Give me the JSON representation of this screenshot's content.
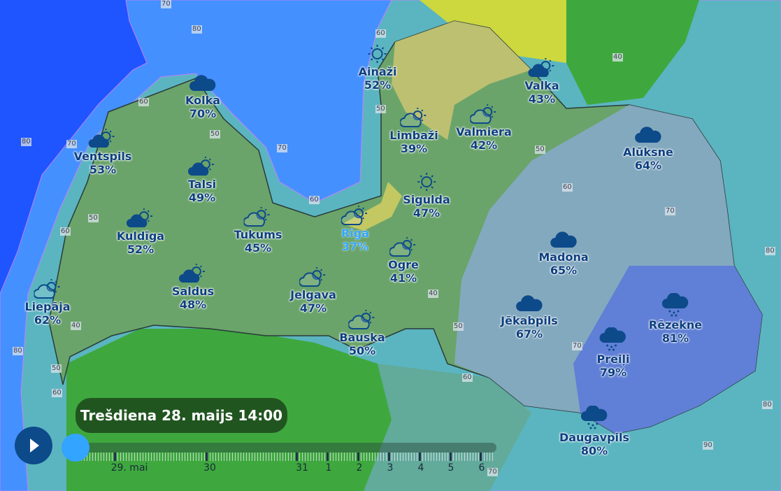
{
  "timeline": {
    "current": "Trešdiena 28. maijs 14:00",
    "progress": 0,
    "labels": [
      "29. mai",
      "30",
      "31",
      "1",
      "2",
      "3",
      "4",
      "5",
      "6"
    ],
    "play_icon": "play-icon"
  },
  "legend_colors": {
    "sea_deep": "#1f55ff",
    "sea": "#4590ff",
    "coast": "#5bb5c0",
    "land": "#6aa46a",
    "east": "#7fa8c8",
    "southeast": "#5c7ad8",
    "lithuania": "#3ea83e",
    "estonia_yellow": "#ccd83e",
    "highlight": "#35a6ff"
  },
  "contours": [
    "70",
    "80",
    "60",
    "60",
    "50",
    "70",
    "60",
    "40",
    "80",
    "70",
    "60",
    "50",
    "60",
    "70",
    "80",
    "40",
    "80",
    "50",
    "60",
    "50",
    "40",
    "50",
    "60",
    "70",
    "80",
    "90",
    "50",
    "70"
  ],
  "cities": [
    {
      "name": "Kolka",
      "value": "70%",
      "icon": "cloud"
    },
    {
      "name": "Ainaži",
      "value": "52%",
      "icon": "sun"
    },
    {
      "name": "Valka",
      "value": "43%",
      "icon": "partly-cloudy"
    },
    {
      "name": "Ventspils",
      "value": "53%",
      "icon": "partly-cloudy"
    },
    {
      "name": "Talsi",
      "value": "49%",
      "icon": "partly-cloudy"
    },
    {
      "name": "Limbaži",
      "value": "39%",
      "icon": "partly-cloudy-outline"
    },
    {
      "name": "Valmiera",
      "value": "42%",
      "icon": "partly-cloudy-outline"
    },
    {
      "name": "Alūksne",
      "value": "64%",
      "icon": "cloud"
    },
    {
      "name": "Kuldīga",
      "value": "52%",
      "icon": "partly-cloudy"
    },
    {
      "name": "Tukums",
      "value": "45%",
      "icon": "partly-cloudy-outline"
    },
    {
      "name": "Rīga",
      "value": "37%",
      "icon": "partly-cloudy-outline"
    },
    {
      "name": "Sigulda",
      "value": "47%",
      "icon": "sun"
    },
    {
      "name": "Ogre",
      "value": "41%",
      "icon": "partly-cloudy-outline"
    },
    {
      "name": "Saldus",
      "value": "48%",
      "icon": "partly-cloudy"
    },
    {
      "name": "Jelgava",
      "value": "47%",
      "icon": "partly-cloudy-outline"
    },
    {
      "name": "Bauska",
      "value": "50%",
      "icon": "partly-cloudy-outline"
    },
    {
      "name": "Liepāja",
      "value": "62%",
      "icon": "partly-cloudy-outline"
    },
    {
      "name": "Madona",
      "value": "65%",
      "icon": "cloud"
    },
    {
      "name": "Jēkabpils",
      "value": "67%",
      "icon": "cloud"
    },
    {
      "name": "Rēzekne",
      "value": "81%",
      "icon": "rain"
    },
    {
      "name": "Preiļi",
      "value": "79%",
      "icon": "rain"
    },
    {
      "name": "Daugavpils",
      "value": "80%",
      "icon": "rain"
    }
  ]
}
